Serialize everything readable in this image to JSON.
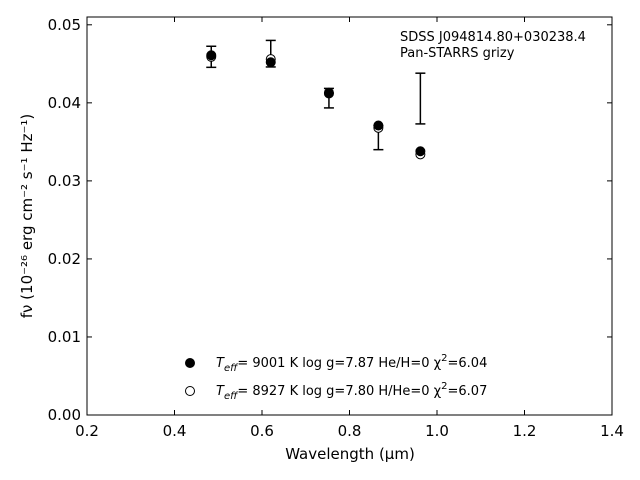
{
  "chart_data": {
    "type": "scatter",
    "title": "",
    "xlabel": "Wavelength (μm)",
    "ylabel": "fν (10⁻²⁶ erg cm⁻² s⁻¹ Hz⁻¹)",
    "xlim": [
      0.2,
      1.4
    ],
    "ylim": [
      0.0,
      0.051
    ],
    "xticks": [
      "0.2",
      "0.4",
      "0.6",
      "0.8",
      "1.0",
      "1.2",
      "1.4"
    ],
    "yticks": [
      "0.00",
      "0.01",
      "0.02",
      "0.03",
      "0.04",
      "0.05"
    ],
    "grid": false,
    "legend_position": "bottom-center",
    "annotations": [
      "SDSS J094814.80+030238.4",
      "Pan-STARRS grizy"
    ],
    "observed": {
      "x": [
        0.484,
        0.62,
        0.753,
        0.866,
        0.962
      ],
      "y": [
        0.0459,
        0.0463,
        0.0406,
        0.03555,
        0.04055
      ],
      "yerr": [
        0.00135,
        0.0017,
        0.00125,
        0.00155,
        0.00325
      ]
    },
    "series": [
      {
        "name": "T_eff=  9001 K  log g=7.87  He/H=0  χ²=6.04",
        "marker": "filled-circle",
        "x": [
          0.484,
          0.62,
          0.753,
          0.866,
          0.962
        ],
        "y": [
          0.0461,
          0.0452,
          0.0413,
          0.0371,
          0.0338
        ]
      },
      {
        "name": "T_eff=  8927 K  log g=7.80  H/He=0  χ²=6.07",
        "marker": "open-circle",
        "x": [
          0.484,
          0.62,
          0.753,
          0.866,
          0.962
        ],
        "y": [
          0.0459,
          0.0456,
          0.0412,
          0.0368,
          0.0334
        ]
      }
    ]
  },
  "legend": [
    {
      "label_prefix": "T",
      "label_sub": "eff",
      "label_rest": "=  9001 K  log g=7.87  He/H=0  χ",
      "label_sup": "2",
      "label_end": "=6.04"
    },
    {
      "label_prefix": "T",
      "label_sub": "eff",
      "label_rest": "=  8927 K  log g=7.80  H/He=0  χ",
      "label_sup": "2",
      "label_end": "=6.07"
    }
  ]
}
